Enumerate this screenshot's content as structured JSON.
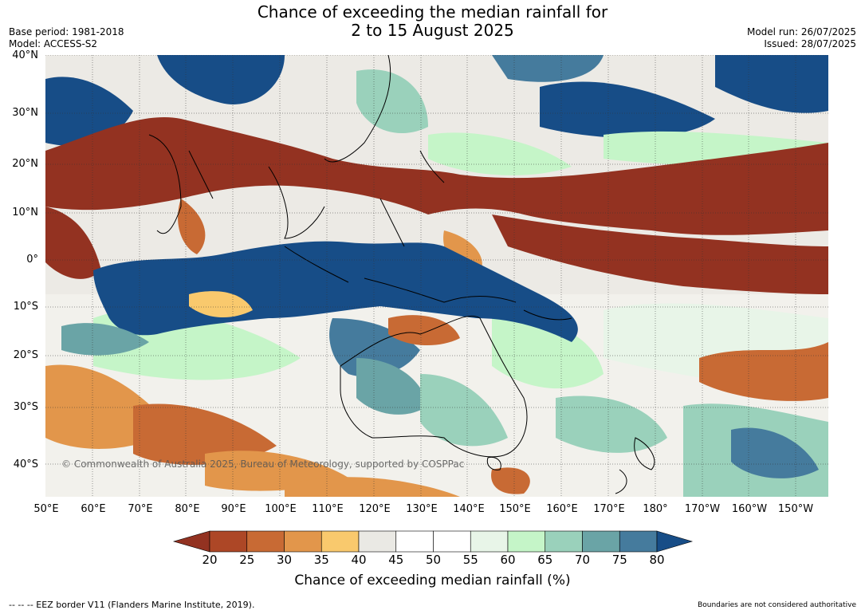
{
  "title": {
    "line1": "Chance of exceeding the median rainfall for",
    "line2": "2 to 15 August 2025"
  },
  "meta": {
    "base_period": "Base period: 1981-2018",
    "model": "Model: ACCESS-S2",
    "model_run": "Model run: 26/07/2025",
    "issued": "Issued: 28/07/2025"
  },
  "map": {
    "lat_labels": [
      "40°N",
      "30°N",
      "20°N",
      "10°N",
      "0°",
      "10°S",
      "20°S",
      "30°S",
      "40°S"
    ],
    "lon_labels": [
      "50°E",
      "60°E",
      "70°E",
      "80°E",
      "90°E",
      "100°E",
      "110°E",
      "120°E",
      "130°E",
      "140°E",
      "150°E",
      "160°E",
      "170°E",
      "180°",
      "170°W",
      "160°W",
      "150°W"
    ],
    "copyright": "© Commonwealth of Australia 2025, Bureau of Meteorology, supported by COSPPac"
  },
  "colorbar": {
    "ticks": [
      "20",
      "25",
      "30",
      "35",
      "40",
      "45",
      "50",
      "55",
      "60",
      "65",
      "70",
      "75",
      "80"
    ],
    "colors": [
      "#933221",
      "#ad4726",
      "#c86a34",
      "#e2964b",
      "#f9c96d",
      "#eae9e4",
      "#ffffff",
      "#ffffff",
      "#e8f5e8",
      "#c5f5c8",
      "#9ad1bb",
      "#6aa4a6",
      "#457b9d",
      "#174d87"
    ],
    "label": "Chance of exceeding median rainfall (%)"
  },
  "footer": {
    "eez": "--  --  -- EEZ border V11 (Flanders Marine Institute, 2019).",
    "disclaimer": "Boundaries are not considered authoritative"
  }
}
